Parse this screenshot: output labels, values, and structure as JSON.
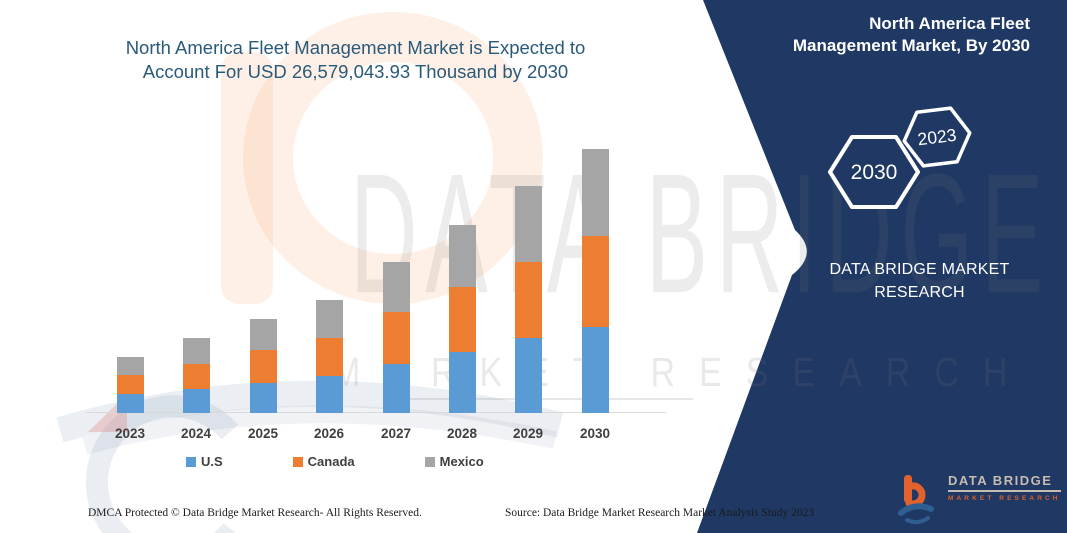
{
  "main_title": {
    "line1": "North America Fleet Management Market is Expected to",
    "line2": "Account For USD 26,579,043.93 Thousand by 2030"
  },
  "side_panel": {
    "title_line1": "North America Fleet",
    "title_line2": "Management Market, By 2030",
    "hexagon_large": "2030",
    "hexagon_small": "2023",
    "brand_line1": "DATA BRIDGE MARKET",
    "brand_line2": "RESEARCH",
    "logo_name": "DATA BRIDGE",
    "logo_tagline": "MARKET RESEARCH",
    "panel_color": "#1f3864"
  },
  "watermark": {
    "line1": "DATA BRIDGE",
    "line2": "MARKET RESEARCH"
  },
  "footer": {
    "left": "DMCA Protected © Data Bridge Market Research-  All Rights Reserved.",
    "right": "Source: Data Bridge Market Research  Market Analysis Study 2023"
  },
  "chart_data": {
    "type": "bar",
    "stacked": true,
    "title": "North America Fleet Management Market is Expected to Account For USD 26,579,043.93 Thousand by 2030",
    "unit": "USD Thousand",
    "categories": [
      "2023",
      "2024",
      "2025",
      "2026",
      "2027",
      "2028",
      "2029",
      "2030"
    ],
    "series": [
      {
        "name": "U.S",
        "color": "#5B9BD5",
        "values": [
          1900000,
          2420000,
          3030000,
          3720000,
          4950000,
          6170000,
          7550000,
          8690000
        ]
      },
      {
        "name": "Canada",
        "color": "#ED7D31",
        "values": [
          1920000,
          2520000,
          3350000,
          3830000,
          5270000,
          6480000,
          7680000,
          9140000
        ]
      },
      {
        "name": "Mexico",
        "color": "#A5A5A5",
        "values": [
          1840000,
          2620000,
          3090000,
          3820000,
          5000000,
          6290000,
          7610000,
          8749044
        ]
      }
    ],
    "value_axis": {
      "visible": false,
      "min": 0,
      "max": 26579043.93
    },
    "category_axis": {
      "visible": true
    },
    "grid": false,
    "legend_position": "bottom"
  }
}
